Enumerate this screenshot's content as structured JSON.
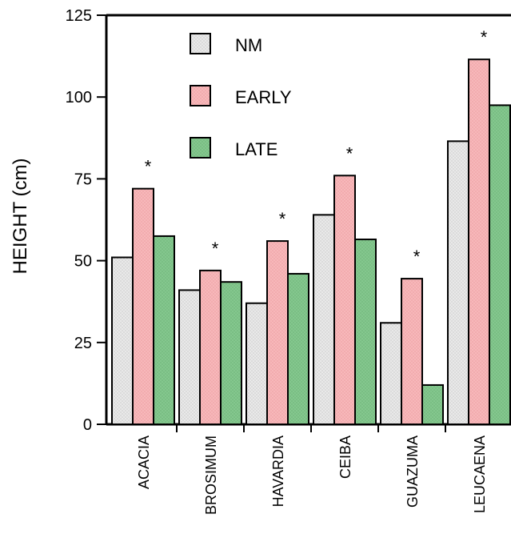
{
  "chart_data": {
    "type": "bar",
    "title": "",
    "xlabel": "",
    "ylabel": "HEIGHT (cm)",
    "ylim": [
      0,
      125
    ],
    "yticks": [
      "0",
      "25",
      "50",
      "75",
      "100",
      "125"
    ],
    "categories": [
      "ACACIA",
      "BROSIMUM",
      "HAVARDIA",
      "CEIBA",
      "GUAZUMA",
      "LEUCAENA"
    ],
    "series": [
      {
        "name": "NM",
        "color": "#e6e6e6",
        "values": [
          51,
          41,
          37,
          64,
          31,
          86.5
        ]
      },
      {
        "name": "EARLY",
        "color": "#f5b3b5",
        "values": [
          72,
          47,
          56,
          76,
          44.5,
          111.5
        ]
      },
      {
        "name": "LATE",
        "color": "#80c48a",
        "values": [
          57.5,
          43.5,
          46,
          56.5,
          12,
          97.5
        ]
      }
    ],
    "annotations": [
      "*",
      "*",
      "*",
      "*",
      "*",
      "*"
    ],
    "legend_position": "top-left",
    "grid": false
  }
}
